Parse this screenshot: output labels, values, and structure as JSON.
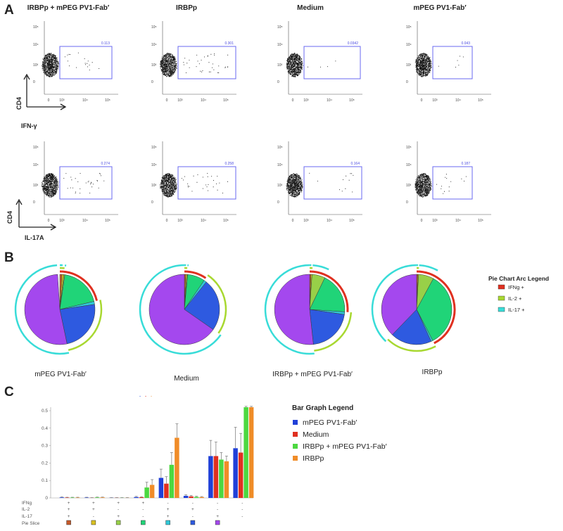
{
  "panels": {
    "a": "A",
    "b": "B",
    "c": "C"
  },
  "flow": {
    "columns": [
      "IRBPp + mPEG PV1-Fab′",
      "IRBPp",
      "Medium",
      "mPEG PV1-Fab′"
    ],
    "y_axis_label": "CD4",
    "rows": [
      {
        "x_axis_label": "IFN-γ",
        "gates": [
          "0.113",
          "0.301",
          "0.0342",
          "0.043"
        ]
      },
      {
        "x_axis_label": "IL-17A",
        "gates": [
          "0.274",
          "0.258",
          "0.164",
          "0.187"
        ]
      }
    ],
    "y_ticks": [
      "10⁵",
      "10⁴",
      "10³",
      "0"
    ],
    "x_ticks": [
      "0",
      "10³",
      "10⁴",
      "10⁵"
    ]
  },
  "pies": {
    "legend_title": "Pie Chart Arc Legend",
    "arc_legend": [
      {
        "label": "IFNg +",
        "color": "#e03020"
      },
      {
        "label": "IL-2 +",
        "color": "#a8d830"
      },
      {
        "label": "IL-17 +",
        "color": "#38dcd8"
      }
    ],
    "slice_colors": [
      "#c55a2a",
      "#d8c020",
      "#98d048",
      "#20d478",
      "#30c8d8",
      "#2e5ae0",
      "#a448ee"
    ],
    "items": [
      {
        "label": "mPEG PV1-Fab′",
        "slices": [
          0.01,
          0.008,
          0.005,
          0.19,
          0.014,
          0.24,
          0.523
        ]
      },
      {
        "label": "Medium",
        "slices": [
          0.006,
          0.005,
          0.004,
          0.08,
          0.012,
          0.24,
          0.653
        ]
      },
      {
        "label": "IRBPp + mPEG PV1-Fab′",
        "slices": [
          0.006,
          0.005,
          0.06,
          0.19,
          0.012,
          0.21,
          0.517
        ]
      },
      {
        "label": "IRBPp",
        "slices": [
          0.005,
          0.004,
          0.07,
          0.345,
          0.008,
          0.19,
          0.378
        ]
      }
    ]
  },
  "chart_data": {
    "type": "bar",
    "title": "",
    "xlabel": "",
    "ylabel": "",
    "ylim": [
      0,
      0.52
    ],
    "yticks": [
      "0",
      "0.1",
      "0.2",
      "0.3",
      "0.4",
      "0.5"
    ],
    "legend_title": "Bar Graph Legend",
    "row_labels": [
      "IFNg",
      "IL-2",
      "IL-17",
      "Pie Slice"
    ],
    "categories": [
      {
        "ifng": "+",
        "il2": "+",
        "il17": "+"
      },
      {
        "ifng": "+",
        "il2": "+",
        "il17": "-"
      },
      {
        "ifng": "+",
        "il2": "-",
        "il17": "+"
      },
      {
        "ifng": "+",
        "il2": "-",
        "il17": "-"
      },
      {
        "ifng": "-",
        "il2": "+",
        "il17": "+"
      },
      {
        "ifng": "-",
        "il2": "+",
        "il17": "-"
      },
      {
        "ifng": "-",
        "il2": "-",
        "il17": "+"
      },
      {
        "ifng": "-",
        "il2": "-",
        "il17": "-"
      }
    ],
    "slice_colors": [
      "#c55a2a",
      "#d8c020",
      "#98d048",
      "#20d478",
      "#30c8d8",
      "#2e5ae0",
      "#a448ee"
    ],
    "dots": [
      "·",
      "·",
      "·"
    ],
    "dot_colors": [
      "#2e5ae0",
      "#e03020",
      "#e8a050"
    ],
    "series": [
      {
        "name": "mPEG PV1-Fab′",
        "color": "#2040d8",
        "values": [
          0.003,
          0.002,
          0.001,
          0.005,
          0.115,
          0.012,
          0.24,
          0.285
        ],
        "errors": [
          0.003,
          0.002,
          0.001,
          0.004,
          0.05,
          0.006,
          0.09,
          0.12
        ]
      },
      {
        "name": "Medium",
        "color": "#e03020",
        "values": [
          0.002,
          0.001,
          0.001,
          0.004,
          0.082,
          0.009,
          0.24,
          0.26
        ],
        "errors": [
          0.002,
          0.001,
          0.001,
          0.003,
          0.04,
          0.005,
          0.08,
          0.11
        ]
      },
      {
        "name": "IRBPp + mPEG PV1-Fab′",
        "color": "#4cd840",
        "values": [
          0.002,
          0.003,
          0.001,
          0.06,
          0.19,
          0.006,
          0.22,
          0.52
        ],
        "errors": [
          0.002,
          0.002,
          0.001,
          0.03,
          0.07,
          0.004,
          0.04,
          0.17
        ]
      },
      {
        "name": "IRBPp",
        "color": "#f08c28",
        "values": [
          0.002,
          0.003,
          0.001,
          0.075,
          0.345,
          0.005,
          0.21,
          0.52
        ],
        "errors": [
          0.002,
          0.002,
          0.001,
          0.03,
          0.08,
          0.003,
          0.03,
          0.17
        ]
      }
    ]
  }
}
